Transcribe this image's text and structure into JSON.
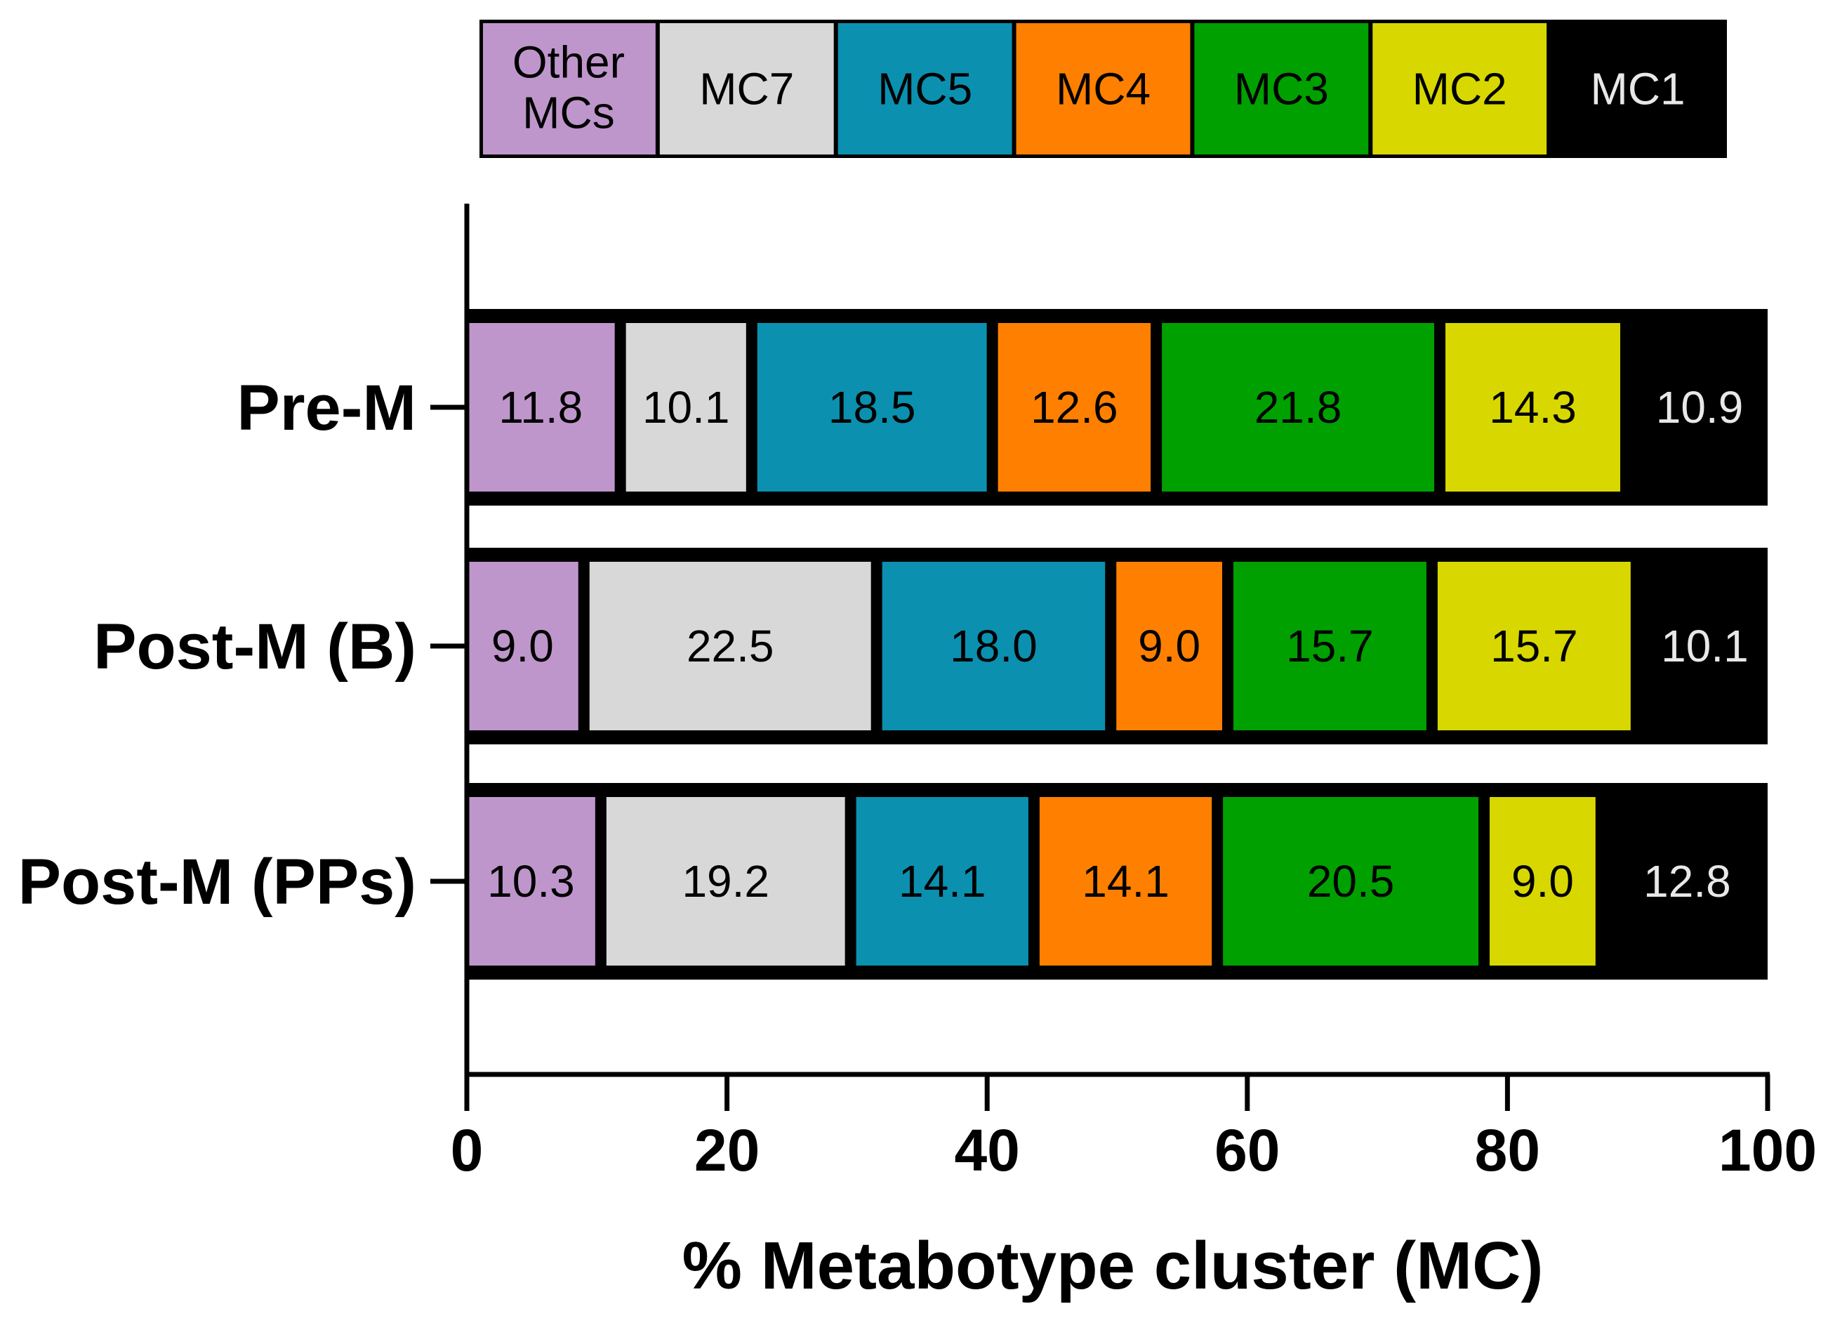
{
  "chart_data": {
    "type": "bar",
    "orientation": "horizontal",
    "stacked": true,
    "title": "",
    "xlabel": "% Metabotype cluster (MC)",
    "ylabel": "",
    "xlim": [
      0,
      100
    ],
    "xticks": [
      0,
      20,
      40,
      60,
      80,
      100
    ],
    "categories": [
      "Pre-M",
      "Post-M (B)",
      "Post-M (PPs)"
    ],
    "legend_position": "top",
    "series": [
      {
        "name": "Other MCs",
        "color": "#bf96cc",
        "label_color": "#000000",
        "values": [
          11.8,
          9.0,
          10.3
        ]
      },
      {
        "name": "MC7",
        "color": "#d8d8d8",
        "label_color": "#000000",
        "values": [
          10.1,
          22.5,
          19.2
        ]
      },
      {
        "name": "MC5",
        "color": "#0b90b0",
        "label_color": "#000000",
        "values": [
          18.5,
          18.0,
          14.1
        ]
      },
      {
        "name": "MC4",
        "color": "#ff8000",
        "label_color": "#000000",
        "values": [
          12.6,
          9.0,
          14.1
        ]
      },
      {
        "name": "MC3",
        "color": "#00a000",
        "label_color": "#000000",
        "values": [
          21.8,
          15.7,
          20.5
        ]
      },
      {
        "name": "MC2",
        "color": "#d8d800",
        "label_color": "#000000",
        "values": [
          14.3,
          15.7,
          9.0
        ]
      },
      {
        "name": "MC1",
        "color": "#000000",
        "label_color": "#e8e8e8",
        "values": [
          10.9,
          10.1,
          12.8
        ]
      }
    ],
    "data_labels": [
      [
        "11.8",
        "10.1",
        "18.5",
        "12.6",
        "21.8",
        "14.3",
        "10.9"
      ],
      [
        "9.0",
        "22.5",
        "18.0",
        "9.0",
        "15.7",
        "15.7",
        "10.1"
      ],
      [
        "10.3",
        "19.2",
        "14.1",
        "14.1",
        "20.5",
        "9.0",
        "12.8"
      ]
    ],
    "legend_labels": [
      [
        "Other",
        "MCs"
      ],
      [
        "MC7"
      ],
      [
        "MC5"
      ],
      [
        "MC4"
      ],
      [
        "MC3"
      ],
      [
        "MC2"
      ],
      [
        "MC1"
      ]
    ]
  }
}
